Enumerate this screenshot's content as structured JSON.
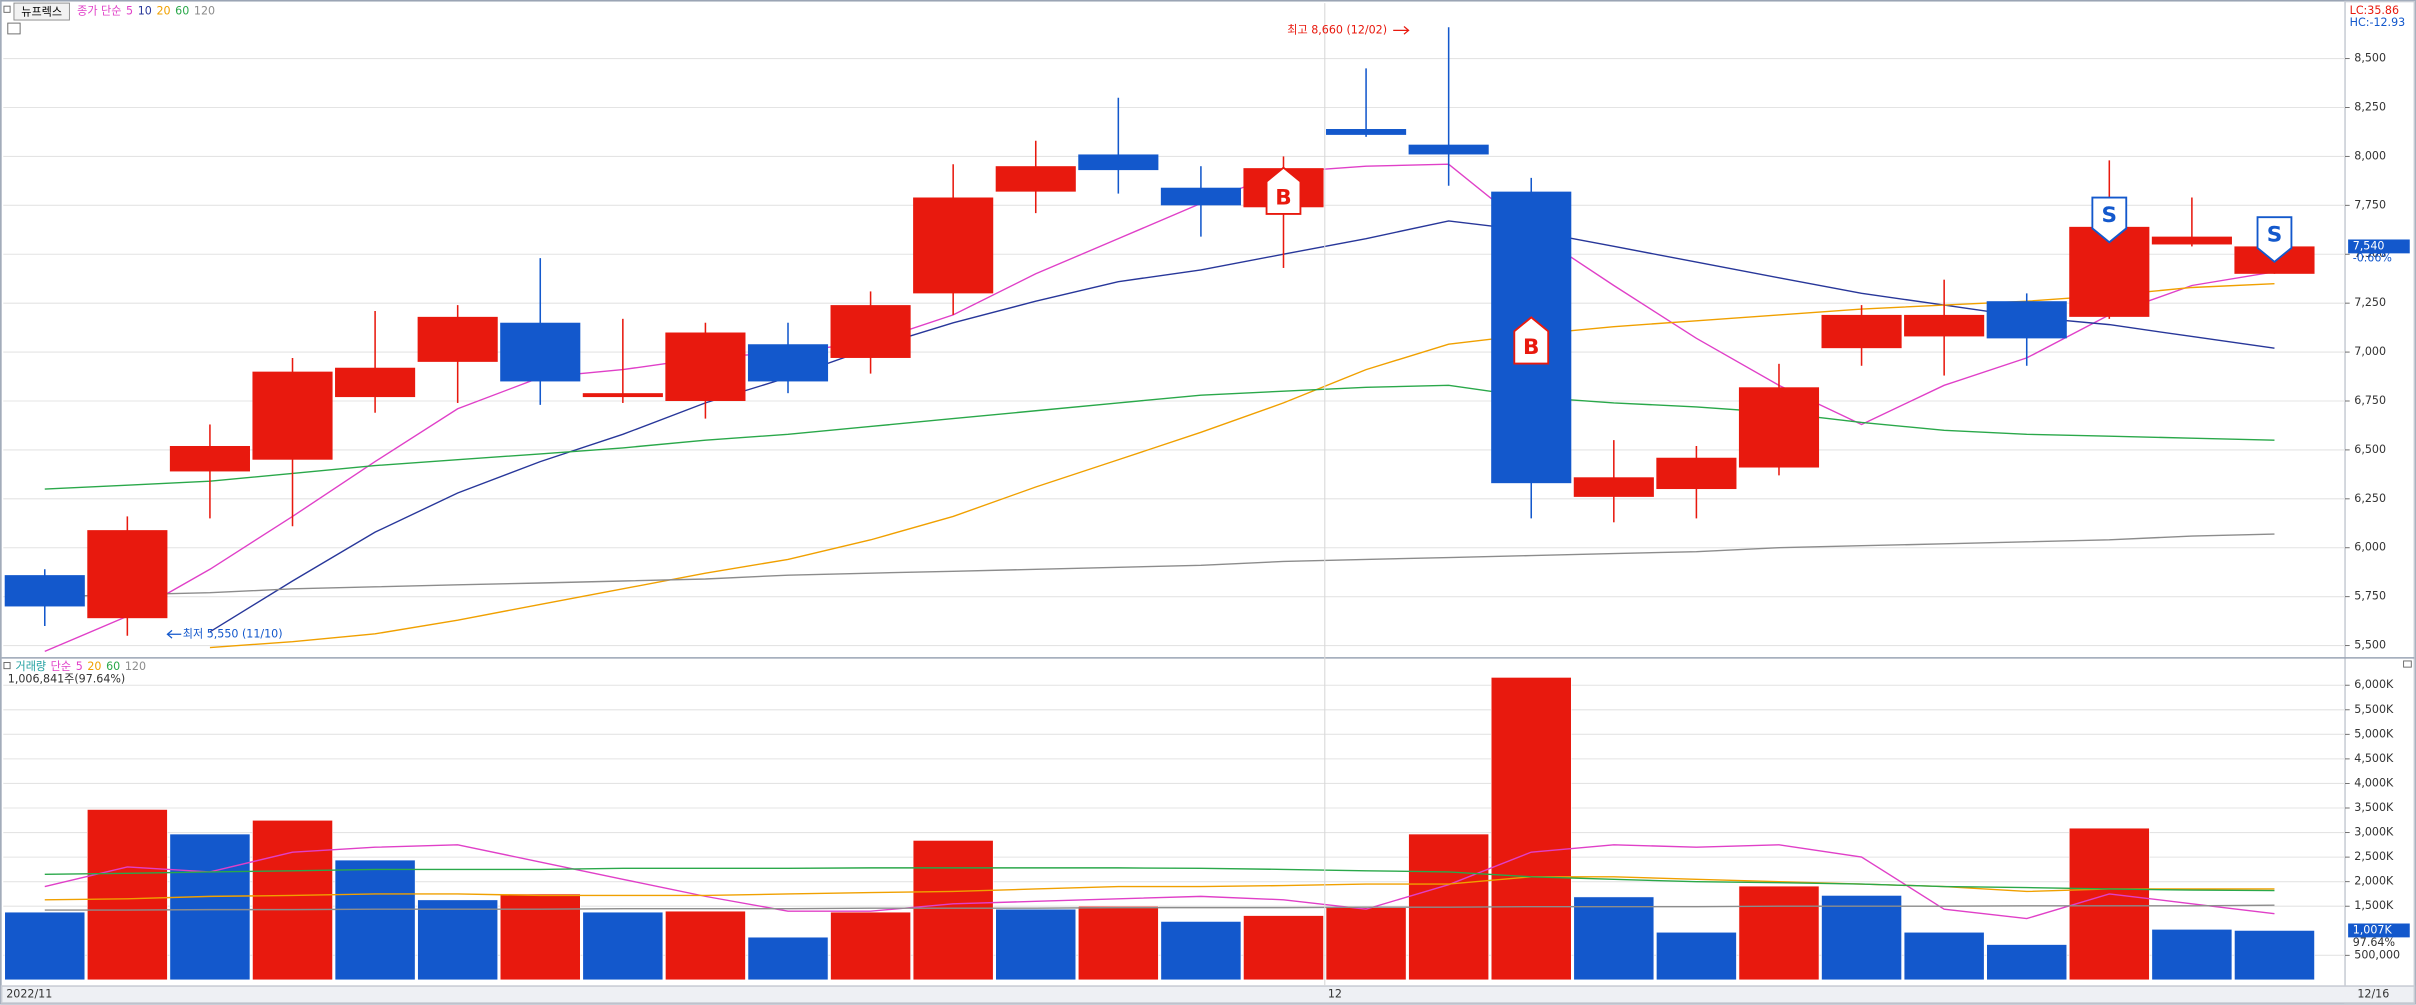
{
  "chart_data": [
    {
      "type": "candlestick",
      "title": "뉴프렉스",
      "ma_prefix": "종가 단순",
      "indicators": [
        {
          "text": "LC:35.86",
          "color": "#e8190e"
        },
        {
          "text": "HC:-12.93",
          "color": "#1358cc"
        }
      ],
      "categories": [
        "2022/11",
        null,
        null,
        null,
        null,
        null,
        null,
        null,
        null,
        null,
        null,
        null,
        null,
        null,
        null,
        null,
        "12",
        null,
        null,
        null,
        null,
        null,
        null,
        null,
        null,
        null,
        null,
        "12/16"
      ],
      "open": [
        5860,
        5640,
        6390,
        6450,
        6770,
        6950,
        7150,
        6770,
        6750,
        7040,
        6970,
        7300,
        7820,
        8010,
        7840,
        7740,
        8140,
        8060,
        7820,
        6260,
        6300,
        6410,
        7020,
        7080,
        7260,
        7180,
        7550,
        7400
      ],
      "high": [
        5890,
        6160,
        6630,
        6970,
        7210,
        7240,
        7480,
        7170,
        7150,
        7150,
        7310,
        7960,
        8080,
        8300,
        7950,
        8000,
        8450,
        8660,
        7890,
        6550,
        6520,
        6940,
        7240,
        7370,
        7300,
        7980,
        7790,
        7570
      ],
      "low": [
        5600,
        5550,
        6150,
        6110,
        6690,
        6740,
        6730,
        6740,
        6660,
        6790,
        6890,
        7190,
        7710,
        7810,
        7590,
        7430,
        8100,
        7850,
        6150,
        6130,
        6150,
        6370,
        6930,
        6880,
        6930,
        7170,
        7540,
        7400
      ],
      "close": [
        5700,
        6090,
        6520,
        6900,
        6920,
        7180,
        6850,
        6790,
        7100,
        6850,
        7240,
        7790,
        7950,
        7930,
        7750,
        7940,
        8110,
        8010,
        6330,
        6360,
        6460,
        6820,
        7190,
        7190,
        7070,
        7640,
        7590,
        7540
      ],
      "up_color": "#e8190e",
      "down_color": "#1358cc",
      "signals": [
        null,
        null,
        null,
        null,
        null,
        null,
        null,
        null,
        null,
        null,
        null,
        null,
        null,
        null,
        null,
        "B",
        null,
        null,
        "B",
        null,
        null,
        null,
        null,
        null,
        null,
        "S",
        null,
        "S"
      ],
      "high_label": "최고 8,660 (12/02)",
      "low_label": "최저 5,550 (11/10)",
      "last_close_label": "7,540",
      "change_label": "-0.66%",
      "series": [
        {
          "name": "5",
          "color": "#e040c8",
          "values": [
            5470,
            5650,
            5890,
            6160,
            6440,
            6710,
            6870,
            6910,
            6970,
            7000,
            7050,
            7190,
            7400,
            7580,
            7760,
            7920,
            7950,
            7960,
            7620,
            7340,
            7070,
            6830,
            6630,
            6830,
            6970,
            7190,
            7340,
            7410
          ]
        },
        {
          "name": "10",
          "color": "#28379a",
          "values": [
            null,
            null,
            5570,
            5830,
            6080,
            6280,
            6440,
            6580,
            6740,
            6870,
            7020,
            7150,
            7260,
            7360,
            7420,
            7500,
            7580,
            7670,
            7620,
            7540,
            7460,
            7380,
            7300,
            7240,
            7180,
            7140,
            7080,
            7020
          ]
        },
        {
          "name": "20",
          "color": "#f0a000",
          "values": [
            null,
            null,
            5490,
            5520,
            5560,
            5630,
            5710,
            5790,
            5870,
            5940,
            6040,
            6160,
            6310,
            6450,
            6590,
            6740,
            6910,
            7040,
            7090,
            7130,
            7160,
            7190,
            7220,
            7240,
            7260,
            7290,
            7330,
            7350
          ]
        },
        {
          "name": "60",
          "color": "#2aa84a",
          "values": [
            6300,
            6320,
            6340,
            6380,
            6420,
            6450,
            6480,
            6510,
            6550,
            6580,
            6620,
            6660,
            6700,
            6740,
            6780,
            6800,
            6820,
            6830,
            6770,
            6740,
            6720,
            6690,
            6640,
            6600,
            6580,
            6570,
            6560,
            6550
          ]
        },
        {
          "name": "120",
          "color": "#8c8c8c",
          "values": [
            5750,
            5760,
            5770,
            5790,
            5800,
            5810,
            5820,
            5830,
            5840,
            5860,
            5870,
            5880,
            5890,
            5900,
            5910,
            5930,
            5940,
            5950,
            5960,
            5970,
            5980,
            6000,
            6010,
            6020,
            6030,
            6040,
            6060,
            6070
          ]
        }
      ],
      "ylim": [
        5445,
        8760
      ],
      "yticks": [
        {
          "value": 5500,
          "label": "5,500"
        },
        {
          "value": 5750,
          "label": "5,750"
        },
        {
          "value": 6000,
          "label": "6,000"
        },
        {
          "value": 6250,
          "label": "6,250"
        },
        {
          "value": 6500,
          "label": "6,500"
        },
        {
          "value": 6750,
          "label": "6,750"
        },
        {
          "value": 7000,
          "label": "7,000"
        },
        {
          "value": 7250,
          "label": "7,250"
        },
        {
          "value": 7500,
          "label": "7,500"
        },
        {
          "value": 7750,
          "label": "7,750"
        },
        {
          "value": 8000,
          "label": "8,000"
        },
        {
          "value": 8250,
          "label": "8,250"
        },
        {
          "value": 8500,
          "label": "8,500"
        }
      ],
      "grid": true
    },
    {
      "type": "volume",
      "title": "거래량",
      "title_color": "#20a0a0",
      "ma_prefix": "단순",
      "info": "1,006,841주(97.64%)",
      "values": [
        1380000,
        3470000,
        2970000,
        3250000,
        2440000,
        1630000,
        1750000,
        1380000,
        1400000,
        870000,
        1380000,
        2840000,
        1440000,
        1500000,
        1190000,
        1310000,
        1470000,
        2970000,
        6160000,
        1690000,
        970000,
        1910000,
        1720000,
        970000,
        720000,
        3090000,
        1030000,
        1006841
      ],
      "up_color": "#e8190e",
      "down_color": "#1358cc",
      "last_label": "1,007K",
      "change_label": "97.64%",
      "series": [
        {
          "name": "5",
          "color": "#e040c8",
          "values": [
            1900000,
            2300000,
            2200000,
            2600000,
            2700000,
            2750000,
            2400000,
            2050000,
            1700000,
            1400000,
            1400000,
            1550000,
            1600000,
            1650000,
            1700000,
            1630000,
            1440000,
            1940000,
            2600000,
            2750000,
            2700000,
            2750000,
            2500000,
            1440000,
            1250000,
            1750000,
            1550000,
            1350000
          ]
        },
        {
          "name": "20",
          "color": "#f0a000",
          "values": [
            1630000,
            1650000,
            1700000,
            1720000,
            1750000,
            1750000,
            1720000,
            1720000,
            1720000,
            1750000,
            1780000,
            1800000,
            1850000,
            1900000,
            1900000,
            1920000,
            1950000,
            1950000,
            2100000,
            2100000,
            2050000,
            2000000,
            1950000,
            1900000,
            1800000,
            1850000,
            1850000,
            1850000
          ]
        },
        {
          "name": "60",
          "color": "#2aa84a",
          "values": [
            2150000,
            2170000,
            2200000,
            2220000,
            2250000,
            2250000,
            2250000,
            2270000,
            2270000,
            2270000,
            2280000,
            2280000,
            2280000,
            2280000,
            2270000,
            2250000,
            2220000,
            2200000,
            2100000,
            2050000,
            2000000,
            1980000,
            1950000,
            1900000,
            1880000,
            1850000,
            1830000,
            1820000
          ]
        },
        {
          "name": "120",
          "color": "#8c8c8c",
          "values": [
            1420000,
            1420000,
            1430000,
            1430000,
            1440000,
            1440000,
            1440000,
            1450000,
            1450000,
            1450000,
            1460000,
            1460000,
            1460000,
            1470000,
            1470000,
            1470000,
            1480000,
            1480000,
            1490000,
            1490000,
            1490000,
            1500000,
            1500000,
            1500000,
            1510000,
            1510000,
            1510000,
            1520000
          ]
        }
      ],
      "ylim": [
        0,
        6400000
      ],
      "yticks": [
        {
          "value": 500000,
          "label": "500,000"
        },
        {
          "value": 1500000,
          "label": "1,500K"
        },
        {
          "value": 2000000,
          "label": "2,000K"
        },
        {
          "value": 2500000,
          "label": "2,500K"
        },
        {
          "value": 3000000,
          "label": "3,000K"
        },
        {
          "value": 3500000,
          "label": "3,500K"
        },
        {
          "value": 4000000,
          "label": "4,000K"
        },
        {
          "value": 4500000,
          "label": "4,500K"
        },
        {
          "value": 5000000,
          "label": "5,000K"
        },
        {
          "value": 5500000,
          "label": "5,500K"
        },
        {
          "value": 6000000,
          "label": "6,000K"
        }
      ],
      "grid": true
    }
  ]
}
